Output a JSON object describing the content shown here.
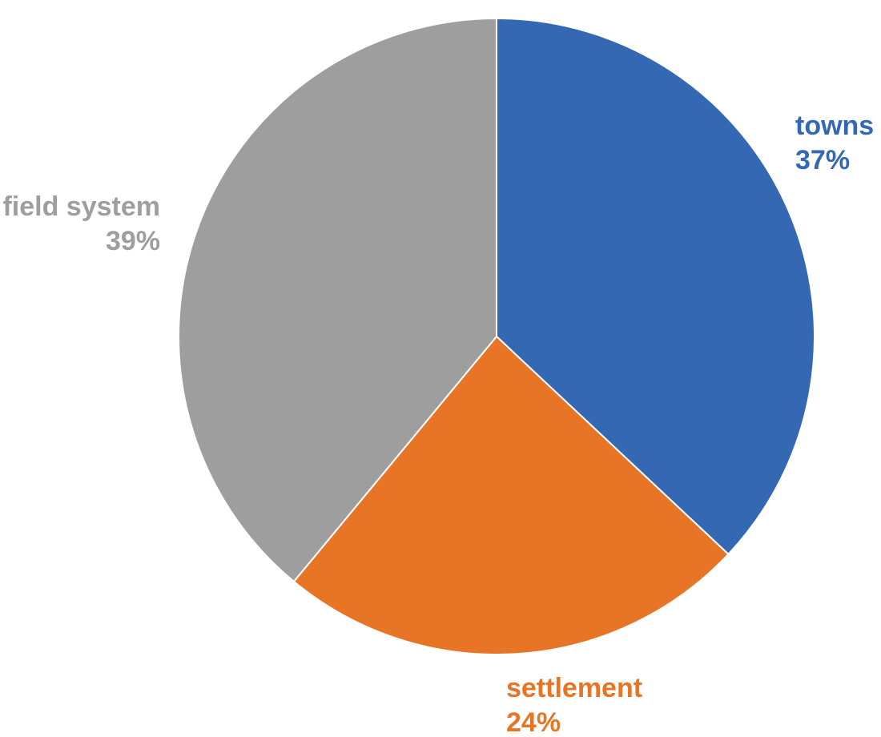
{
  "chart_data": {
    "type": "pie",
    "title": "",
    "start": "12 o'clock",
    "direction": "clockwise",
    "slices": [
      {
        "label": "towns",
        "value": 37,
        "value_label": "37%",
        "color": "#3568b3"
      },
      {
        "label": "settlement",
        "value": 24,
        "value_label": "24%",
        "color": "#e87425"
      },
      {
        "label": "field system",
        "value": 39,
        "value_label": "39%",
        "color": "#9e9e9e"
      }
    ],
    "legend": "none",
    "data_labels": "outside, category name and percentage, colored to match slice"
  }
}
